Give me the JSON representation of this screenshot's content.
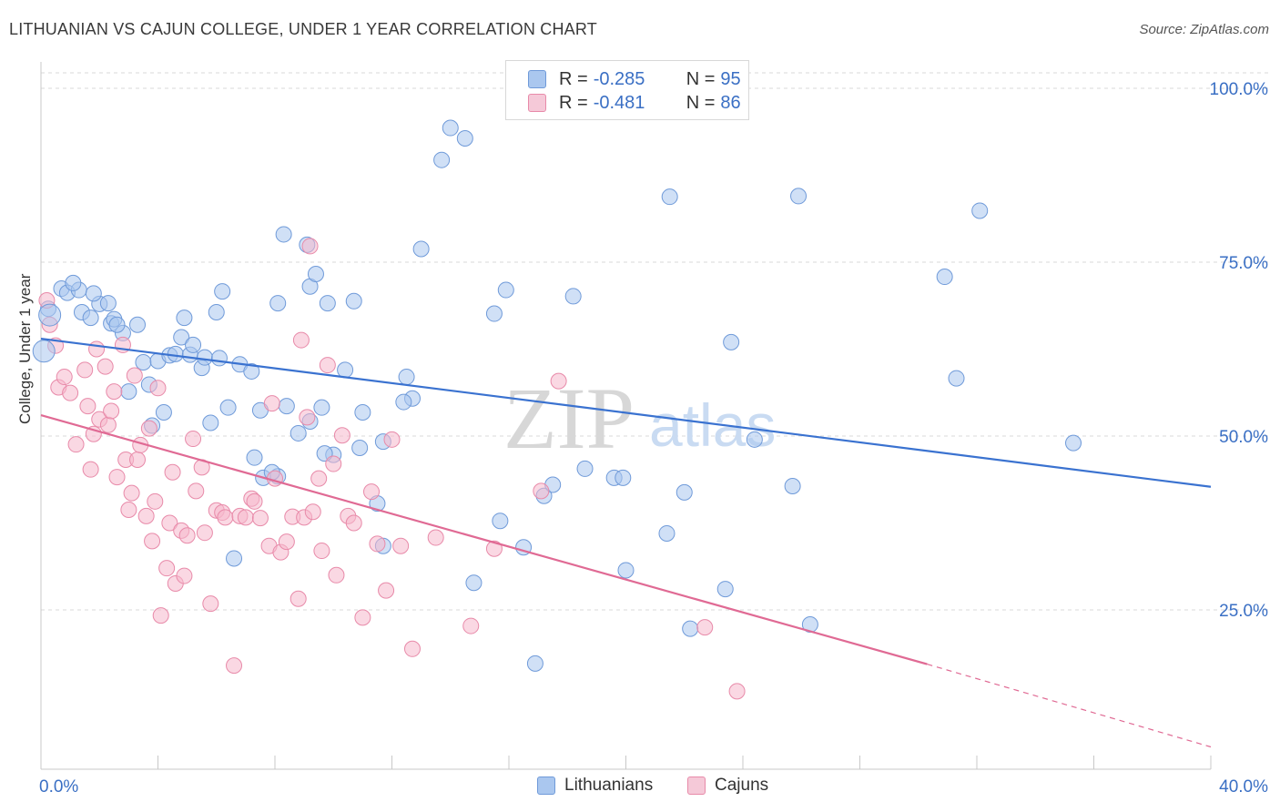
{
  "header": {
    "title": "LITHUANIAN VS CAJUN COLLEGE, UNDER 1 YEAR CORRELATION CHART",
    "source": "Source: ZipAtlas.com"
  },
  "legend": {
    "r_label": "R =",
    "n_label": "N =",
    "series1": {
      "r": "-0.285",
      "n": "95"
    },
    "series2": {
      "r": "-0.481",
      "n": "86"
    }
  },
  "bottom_legend": {
    "series1": "Lithuanians",
    "series2": "Cajuns"
  },
  "watermark": {
    "zip": "ZIP",
    "atlas": "atlas"
  },
  "colors": {
    "blue_fill": "#aac7ef",
    "blue_stroke": "#6f9ad9",
    "blue_line": "#3a72d0",
    "pink_fill": "#f5b8cc",
    "pink_stroke": "#e88aa9",
    "pink_line": "#e06a94",
    "tick_text": "#3a6fc4",
    "grid": "#d9d9d9"
  },
  "chart_data": {
    "type": "scatter",
    "title": "LITHUANIAN VS CAJUN COLLEGE, UNDER 1 YEAR CORRELATION CHART",
    "xlabel": "",
    "ylabel": "College, Under 1 year",
    "xlim": [
      0,
      40
    ],
    "ylim": [
      0,
      105
    ],
    "x_tick_labels": [
      "0.0%",
      "40.0%"
    ],
    "y_ticks": [
      100,
      75,
      50,
      25
    ],
    "y_tick_labels": [
      "100.0%",
      "75.0%",
      "50.0%",
      "25.0%"
    ],
    "grid": "horizontal dashed",
    "legend_placement": "top-center",
    "series": [
      {
        "name": "Lithuanians",
        "r": -0.285,
        "n": 95,
        "trend": {
          "x": [
            0,
            40
          ],
          "y": [
            64.0,
            42.7
          ]
        },
        "points": [
          [
            0.25,
            68.3
          ],
          [
            0.7,
            71.2
          ],
          [
            0.9,
            70.6
          ],
          [
            1.3,
            71.0
          ],
          [
            1.4,
            67.8
          ],
          [
            1.7,
            67.0
          ],
          [
            2.0,
            69.0
          ],
          [
            2.3,
            69.1
          ],
          [
            2.4,
            66.2
          ],
          [
            2.5,
            66.8
          ],
          [
            3.3,
            66.0
          ],
          [
            2.8,
            64.8
          ],
          [
            3.5,
            60.6
          ],
          [
            3.7,
            57.4
          ],
          [
            3.8,
            51.5
          ],
          [
            4.0,
            60.8
          ],
          [
            4.4,
            61.6
          ],
          [
            4.6,
            61.8
          ],
          [
            4.8,
            64.2
          ],
          [
            4.9,
            67.0
          ],
          [
            5.1,
            61.7
          ],
          [
            5.2,
            63.1
          ],
          [
            5.5,
            59.8
          ],
          [
            5.6,
            61.3
          ],
          [
            5.8,
            51.9
          ],
          [
            6.0,
            67.8
          ],
          [
            6.1,
            61.2
          ],
          [
            6.2,
            70.8
          ],
          [
            6.4,
            54.1
          ],
          [
            6.8,
            60.3
          ],
          [
            7.2,
            59.3
          ],
          [
            7.3,
            46.9
          ],
          [
            7.5,
            53.7
          ],
          [
            7.6,
            44.0
          ],
          [
            8.1,
            44.2
          ],
          [
            8.3,
            79.0
          ],
          [
            8.1,
            69.1
          ],
          [
            8.4,
            54.3
          ],
          [
            8.8,
            50.4
          ],
          [
            9.1,
            77.5
          ],
          [
            9.2,
            71.5
          ],
          [
            9.4,
            73.3
          ],
          [
            9.2,
            52.1
          ],
          [
            9.6,
            54.1
          ],
          [
            9.8,
            69.1
          ],
          [
            10.0,
            47.3
          ],
          [
            10.4,
            59.5
          ],
          [
            10.7,
            69.4
          ],
          [
            10.9,
            48.3
          ],
          [
            11.0,
            53.4
          ],
          [
            11.5,
            40.3
          ],
          [
            11.7,
            49.2
          ],
          [
            11.7,
            34.2
          ],
          [
            12.5,
            58.5
          ],
          [
            12.7,
            55.4
          ],
          [
            13.0,
            76.9
          ],
          [
            13.7,
            89.7
          ],
          [
            14.0,
            94.3
          ],
          [
            14.5,
            92.8
          ],
          [
            14.8,
            28.9
          ],
          [
            15.5,
            67.6
          ],
          [
            15.9,
            71.0
          ],
          [
            15.7,
            37.8
          ],
          [
            16.5,
            34.0
          ],
          [
            17.2,
            41.4
          ],
          [
            17.5,
            43.0
          ],
          [
            18.2,
            70.1
          ],
          [
            18.6,
            45.3
          ],
          [
            19.6,
            44.0
          ],
          [
            19.9,
            44.0
          ],
          [
            20.0,
            30.7
          ],
          [
            21.5,
            84.4
          ],
          [
            21.4,
            36.0
          ],
          [
            22.0,
            41.9
          ],
          [
            22.2,
            22.3
          ],
          [
            23.6,
            63.5
          ],
          [
            23.4,
            28.0
          ],
          [
            24.4,
            49.5
          ],
          [
            25.9,
            84.5
          ],
          [
            25.7,
            42.8
          ],
          [
            26.3,
            22.9
          ],
          [
            30.9,
            72.9
          ],
          [
            31.3,
            58.3
          ],
          [
            32.1,
            82.4
          ],
          [
            35.3,
            49.0
          ],
          [
            16.9,
            17.3
          ],
          [
            3.0,
            56.4
          ],
          [
            12.4,
            54.9
          ],
          [
            9.7,
            47.5
          ],
          [
            7.9,
            44.8
          ],
          [
            2.6,
            66.0
          ],
          [
            1.1,
            72.0
          ],
          [
            1.8,
            70.5
          ],
          [
            6.6,
            32.4
          ],
          [
            4.2,
            53.4
          ]
        ]
      },
      {
        "name": "Cajuns",
        "r": -0.481,
        "n": 86,
        "trend": {
          "x": [
            0,
            30.3
          ],
          "y": [
            53.0,
            17.2
          ]
        },
        "trend_dashed": {
          "x": [
            30.3,
            40
          ],
          "y": [
            17.2,
            5.3
          ]
        },
        "points": [
          [
            0.3,
            66.0
          ],
          [
            0.5,
            63.0
          ],
          [
            0.6,
            57.0
          ],
          [
            0.8,
            58.5
          ],
          [
            1.0,
            56.2
          ],
          [
            1.2,
            48.8
          ],
          [
            1.5,
            59.5
          ],
          [
            1.6,
            54.3
          ],
          [
            1.7,
            45.2
          ],
          [
            1.8,
            50.3
          ],
          [
            2.0,
            52.4
          ],
          [
            2.2,
            60.0
          ],
          [
            2.3,
            51.6
          ],
          [
            2.4,
            53.6
          ],
          [
            2.5,
            56.4
          ],
          [
            2.6,
            44.1
          ],
          [
            2.8,
            63.1
          ],
          [
            2.9,
            46.6
          ],
          [
            3.0,
            39.4
          ],
          [
            3.1,
            41.8
          ],
          [
            3.2,
            58.7
          ],
          [
            3.3,
            46.6
          ],
          [
            3.4,
            48.7
          ],
          [
            3.6,
            38.5
          ],
          [
            3.7,
            51.1
          ],
          [
            3.8,
            34.9
          ],
          [
            3.9,
            40.6
          ],
          [
            4.0,
            56.9
          ],
          [
            4.1,
            24.2
          ],
          [
            4.3,
            31.0
          ],
          [
            4.4,
            37.5
          ],
          [
            4.5,
            44.8
          ],
          [
            4.6,
            28.8
          ],
          [
            4.8,
            36.4
          ],
          [
            4.9,
            29.9
          ],
          [
            5.0,
            35.7
          ],
          [
            5.2,
            49.6
          ],
          [
            5.3,
            42.1
          ],
          [
            5.5,
            45.5
          ],
          [
            5.6,
            36.1
          ],
          [
            5.8,
            25.9
          ],
          [
            6.0,
            39.3
          ],
          [
            6.2,
            39.0
          ],
          [
            6.3,
            38.3
          ],
          [
            6.6,
            17.0
          ],
          [
            6.8,
            38.5
          ],
          [
            7.0,
            38.3
          ],
          [
            7.2,
            41.0
          ],
          [
            7.3,
            40.6
          ],
          [
            7.5,
            38.2
          ],
          [
            7.8,
            34.2
          ],
          [
            7.9,
            54.7
          ],
          [
            8.0,
            43.9
          ],
          [
            8.2,
            33.3
          ],
          [
            8.4,
            34.8
          ],
          [
            8.6,
            38.4
          ],
          [
            8.8,
            26.6
          ],
          [
            9.0,
            38.3
          ],
          [
            9.1,
            52.7
          ],
          [
            9.3,
            39.1
          ],
          [
            9.5,
            43.9
          ],
          [
            9.6,
            33.5
          ],
          [
            9.8,
            60.2
          ],
          [
            10.0,
            46.0
          ],
          [
            10.1,
            30.0
          ],
          [
            10.3,
            50.1
          ],
          [
            10.5,
            38.5
          ],
          [
            10.7,
            37.5
          ],
          [
            11.0,
            23.9
          ],
          [
            11.3,
            42.0
          ],
          [
            11.5,
            34.5
          ],
          [
            11.8,
            27.8
          ],
          [
            12.0,
            49.5
          ],
          [
            12.3,
            34.2
          ],
          [
            12.7,
            19.4
          ],
          [
            13.5,
            35.4
          ],
          [
            14.7,
            22.7
          ],
          [
            15.5,
            33.8
          ],
          [
            17.1,
            42.1
          ],
          [
            22.7,
            22.5
          ],
          [
            23.8,
            13.3
          ],
          [
            17.7,
            57.9
          ],
          [
            9.2,
            77.3
          ],
          [
            8.9,
            63.8
          ],
          [
            0.2,
            69.5
          ],
          [
            1.9,
            62.5
          ]
        ]
      }
    ]
  }
}
